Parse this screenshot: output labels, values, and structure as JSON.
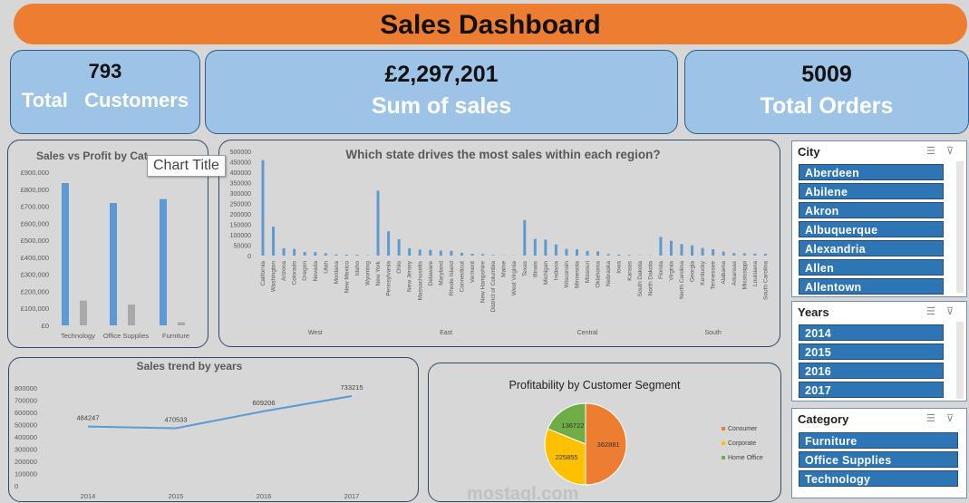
{
  "header": {
    "title": "Sales Dashboard"
  },
  "kpis": {
    "customers": {
      "value": "793",
      "label": "Total   Customers"
    },
    "sales": {
      "value": "£2,297,201",
      "label": "Sum of sales"
    },
    "orders": {
      "value": "5009",
      "label": "Total Orders"
    }
  },
  "tooltip": "Chart Title",
  "watermark": {
    "text": "mostaql.com"
  },
  "colors": {
    "accent": "#ed7d31",
    "kpi_bg": "#9dc3e6",
    "slicer_item": "#2e75b6",
    "bar_blue": "#5b9bd5",
    "pie_consumer": "#ed7d31",
    "pie_corporate": "#ffc000",
    "pie_home": "#70ad47"
  },
  "slicers": {
    "city": {
      "title": "City",
      "items": [
        "Aberdeen",
        "Abilene",
        "Akron",
        "Albuquerque",
        "Alexandria",
        "Allen",
        "Allentown"
      ]
    },
    "years": {
      "title": "Years",
      "items": [
        "2014",
        "2015",
        "2016",
        "2017"
      ]
    },
    "category": {
      "title": "Category",
      "items": [
        "Furniture",
        "Office Supplies",
        "Technology"
      ]
    }
  },
  "chart_data": [
    {
      "type": "bar",
      "title": "Sales vs Profit  by Cat",
      "categories": [
        "Technology",
        "Office Supplies",
        "Furniture"
      ],
      "series": [
        {
          "values": [
            836154,
            719047,
            741999
          ]
        },
        {
          "values": [
            145455,
            122491,
            18451
          ]
        }
      ],
      "yticks": [
        "£0",
        "£100,000",
        "£200,000",
        "£300,000",
        "£400,000",
        "£500,000",
        "£600,000",
        "£700,000",
        "£800,000",
        "£900,000"
      ],
      "ylim": [
        0,
        900000
      ]
    },
    {
      "type": "bar",
      "title": "Which state drives the most sales within each region?",
      "yticks": [
        "0",
        "50000",
        "100000",
        "150000",
        "200000",
        "250000",
        "300000",
        "350000",
        "400000",
        "450000",
        "500000"
      ],
      "ylim": [
        0,
        500000
      ],
      "groups": [
        {
          "region": "West",
          "states": [
            "California",
            "Washington",
            "Arizona",
            "Colorado",
            "Oregon",
            "Nevada",
            "Utah",
            "Montana",
            "New Mexico",
            "Idaho",
            "Wyoming"
          ],
          "values": [
            457688,
            138641,
            35282,
            32108,
            17431,
            16729,
            11220,
            5589,
            4784,
            4382,
            1603
          ]
        },
        {
          "region": "East",
          "states": [
            "New York",
            "Pennsylvania",
            "Ohio",
            "New Jersey",
            "Massachusetts",
            "Delaware",
            "Maryland",
            "Rhode Island",
            "Connecticut",
            "Vermont",
            "New Hampshire",
            "District of Columbia",
            "Maine",
            "West Virginia"
          ],
          "values": [
            310876,
            116512,
            78258,
            35764,
            28634,
            27451,
            23706,
            22628,
            13385,
            8929,
            7293,
            2865,
            1271,
            1210
          ]
        },
        {
          "region": "Central",
          "states": [
            "Texas",
            "Illinois",
            "Michigan",
            "Indiana",
            "Wisconsin",
            "Minnesota",
            "Missouri",
            "Oklahoma",
            "Nebraska",
            "Iowa",
            "Kansas",
            "South Dakota",
            "North Dakota"
          ],
          "values": [
            170188,
            80166,
            76270,
            53555,
            32115,
            29863,
            22205,
            19683,
            7465,
            4580,
            2914,
            1316,
            920
          ]
        },
        {
          "region": "South",
          "states": [
            "Florida",
            "Virginia",
            "North Carolina",
            "Georgia",
            "Kentucky",
            "Tennessee",
            "Alabama",
            "Arkansas",
            "Mississippi",
            "Louisiana",
            "South Carolina"
          ],
          "values": [
            89474,
            70637,
            55603,
            49096,
            36592,
            30662,
            19511,
            11678,
            10771,
            9217,
            8482
          ]
        }
      ]
    },
    {
      "type": "line",
      "title": "Sales trend by years",
      "x": [
        "2014",
        "2015",
        "2016",
        "2017"
      ],
      "values": [
        484247,
        470533,
        609206,
        733215
      ],
      "yticks": [
        "0",
        "100000",
        "200000",
        "300000",
        "400000",
        "500000",
        "600000",
        "700000",
        "800000"
      ],
      "ylim": [
        0,
        800000
      ]
    },
    {
      "type": "pie",
      "title": "Profitability by Customer Segment",
      "slices": [
        {
          "name": "Consumer",
          "value": 362881
        },
        {
          "name": "Corporate",
          "value": 225855
        },
        {
          "name": "Home Office",
          "value": 136722
        }
      ]
    }
  ]
}
